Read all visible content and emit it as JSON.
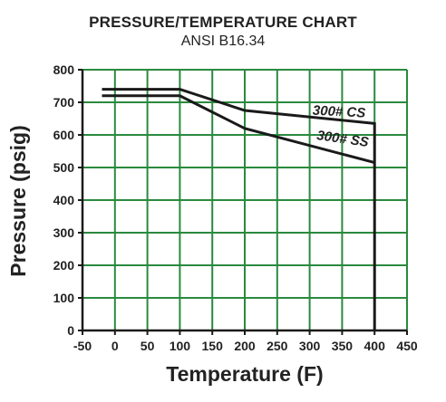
{
  "chart_data": {
    "type": "line",
    "title": "PRESSURE/TEMPERATURE CHART",
    "subtitle": "ANSI B16.34",
    "xlabel": "Temperature (F)",
    "ylabel": "Pressure (psig)",
    "xlim": [
      -50,
      450
    ],
    "ylim": [
      0,
      800
    ],
    "xticks": [
      -50,
      0,
      50,
      100,
      150,
      200,
      250,
      300,
      350,
      400,
      450
    ],
    "yticks": [
      0,
      100,
      200,
      300,
      400,
      500,
      600,
      700,
      800
    ],
    "grid": true,
    "series": [
      {
        "name": "300# CS",
        "x": [
          -20,
          100,
          200,
          400,
          400
        ],
        "y": [
          740,
          740,
          675,
          635,
          0
        ],
        "color": "#1a1a1a"
      },
      {
        "name": "300# SS",
        "x": [
          -20,
          100,
          200,
          400
        ],
        "y": [
          720,
          720,
          620,
          515
        ],
        "color": "#1a1a1a"
      }
    ],
    "grid_color": "#2a8a3e",
    "colors": {
      "background": "#ffffff",
      "text": "#222222",
      "axis": "#1a1a1a"
    }
  }
}
